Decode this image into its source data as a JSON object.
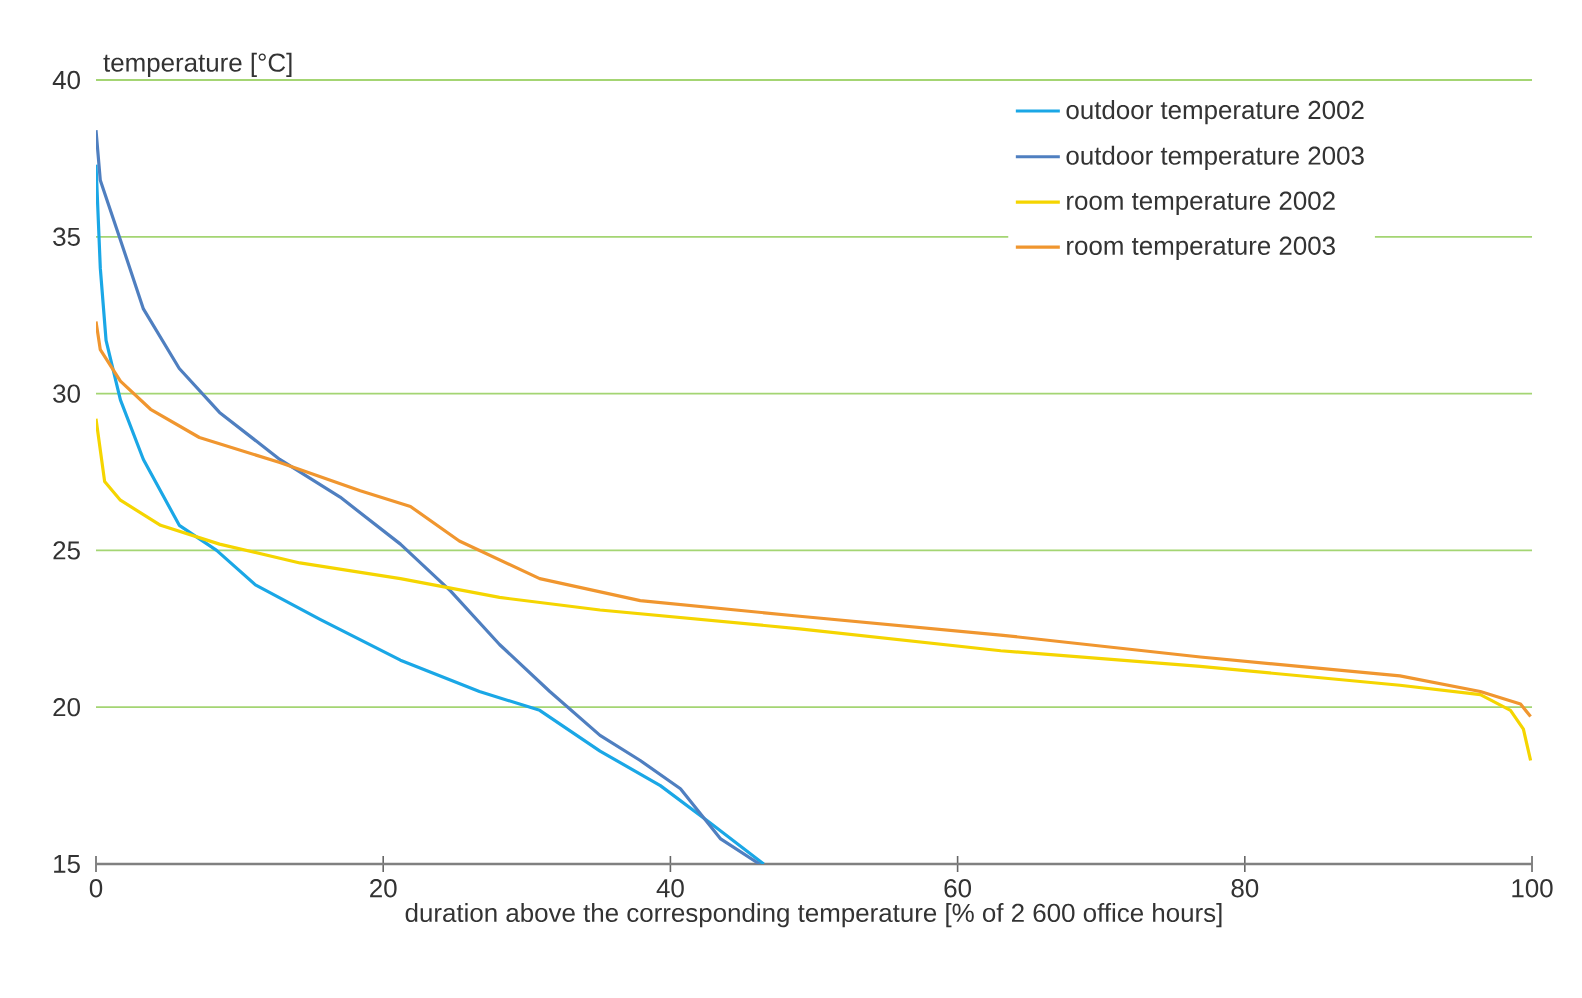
{
  "chart_data": {
    "type": "line",
    "ylabel": "temperature [°C]",
    "xlabel": "duration above the corresponding temperature [% of 2 600 office hours]",
    "xlim": [
      0,
      100
    ],
    "xticks": [
      0,
      20,
      40,
      60,
      80,
      100
    ],
    "ylim": [
      15,
      40
    ],
    "yticks": [
      15,
      20,
      25,
      30,
      35,
      40
    ],
    "grid": "y",
    "legend": "top right",
    "line_style": "solid",
    "series": [
      {
        "name": "outdoor temperature 2002",
        "color": "#1aa7e6",
        "x": [
          0,
          0.3,
          0.7,
          1.7,
          3.3,
          5.8,
          8.4,
          11.1,
          15.6,
          21.2,
          26.7,
          30.9,
          35.1,
          39.3,
          42.8,
          46.5
        ],
        "values": [
          37.3,
          34.0,
          31.7,
          29.8,
          27.9,
          25.8,
          25.0,
          23.9,
          22.8,
          21.5,
          20.5,
          19.9,
          18.6,
          17.5,
          16.3,
          15.0
        ]
      },
      {
        "name": "outdoor temperature 2003",
        "color": "#4f7fc0",
        "x": [
          0,
          0.3,
          1.7,
          3.3,
          5.8,
          8.6,
          12.8,
          17,
          21.2,
          24.7,
          28.1,
          31.6,
          35.1,
          37.9,
          40.7,
          43.5,
          46.2
        ],
        "values": [
          38.4,
          36.8,
          34.9,
          32.7,
          30.8,
          29.4,
          27.9,
          26.7,
          25.2,
          23.7,
          22.0,
          20.5,
          19.1,
          18.3,
          17.4,
          15.8,
          15.0
        ]
      },
      {
        "name": "room temperature 2002",
        "color": "#f5d500",
        "x": [
          0,
          0.6,
          1.7,
          4.5,
          8.6,
          14.2,
          21.2,
          28.1,
          35.1,
          49,
          63,
          76.9,
          90.8,
          96.4,
          98.5,
          99.4,
          99.9
        ],
        "values": [
          29.2,
          27.2,
          26.6,
          25.8,
          25.2,
          24.6,
          24.1,
          23.5,
          23.1,
          22.5,
          21.8,
          21.3,
          20.7,
          20.4,
          19.9,
          19.3,
          18.3
        ]
      },
      {
        "name": "room temperature 2003",
        "color": "#f0962f",
        "x": [
          0,
          0.3,
          1.7,
          3.8,
          7.2,
          12.8,
          18.4,
          21.9,
          25.3,
          30.9,
          37.9,
          49,
          63,
          76.9,
          90.8,
          96.4,
          99.2,
          99.9
        ],
        "values": [
          32.3,
          31.4,
          30.4,
          29.5,
          28.6,
          27.8,
          26.9,
          26.4,
          25.3,
          24.1,
          23.4,
          22.9,
          22.3,
          21.6,
          21.0,
          20.5,
          20.1,
          19.7
        ]
      }
    ]
  }
}
